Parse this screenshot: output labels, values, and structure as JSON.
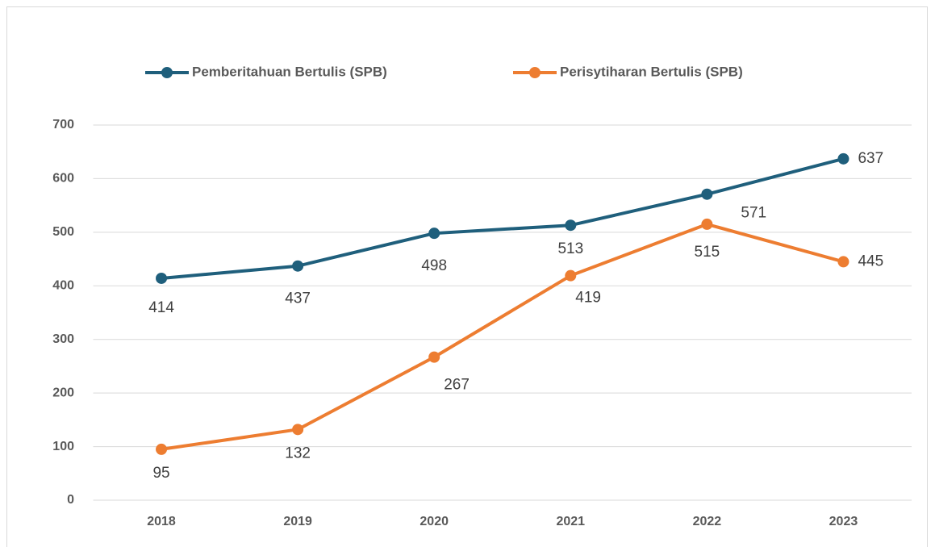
{
  "chart_data": {
    "type": "line",
    "categories": [
      "2018",
      "2019",
      "2020",
      "2021",
      "2022",
      "2023"
    ],
    "series": [
      {
        "name": "Pemberitahuan Bertulis (SPB)",
        "color": "#1f5f7c",
        "values": [
          414,
          437,
          498,
          513,
          571,
          637
        ]
      },
      {
        "name": "Perisytiharan Bertulis (SPB)",
        "color": "#ed7d31",
        "values": [
          95,
          132,
          267,
          419,
          515,
          445
        ]
      }
    ],
    "ylim": [
      0,
      700
    ],
    "yticks": [
      0,
      100,
      200,
      300,
      400,
      500,
      600,
      700
    ],
    "grid": true,
    "legend": "top"
  }
}
